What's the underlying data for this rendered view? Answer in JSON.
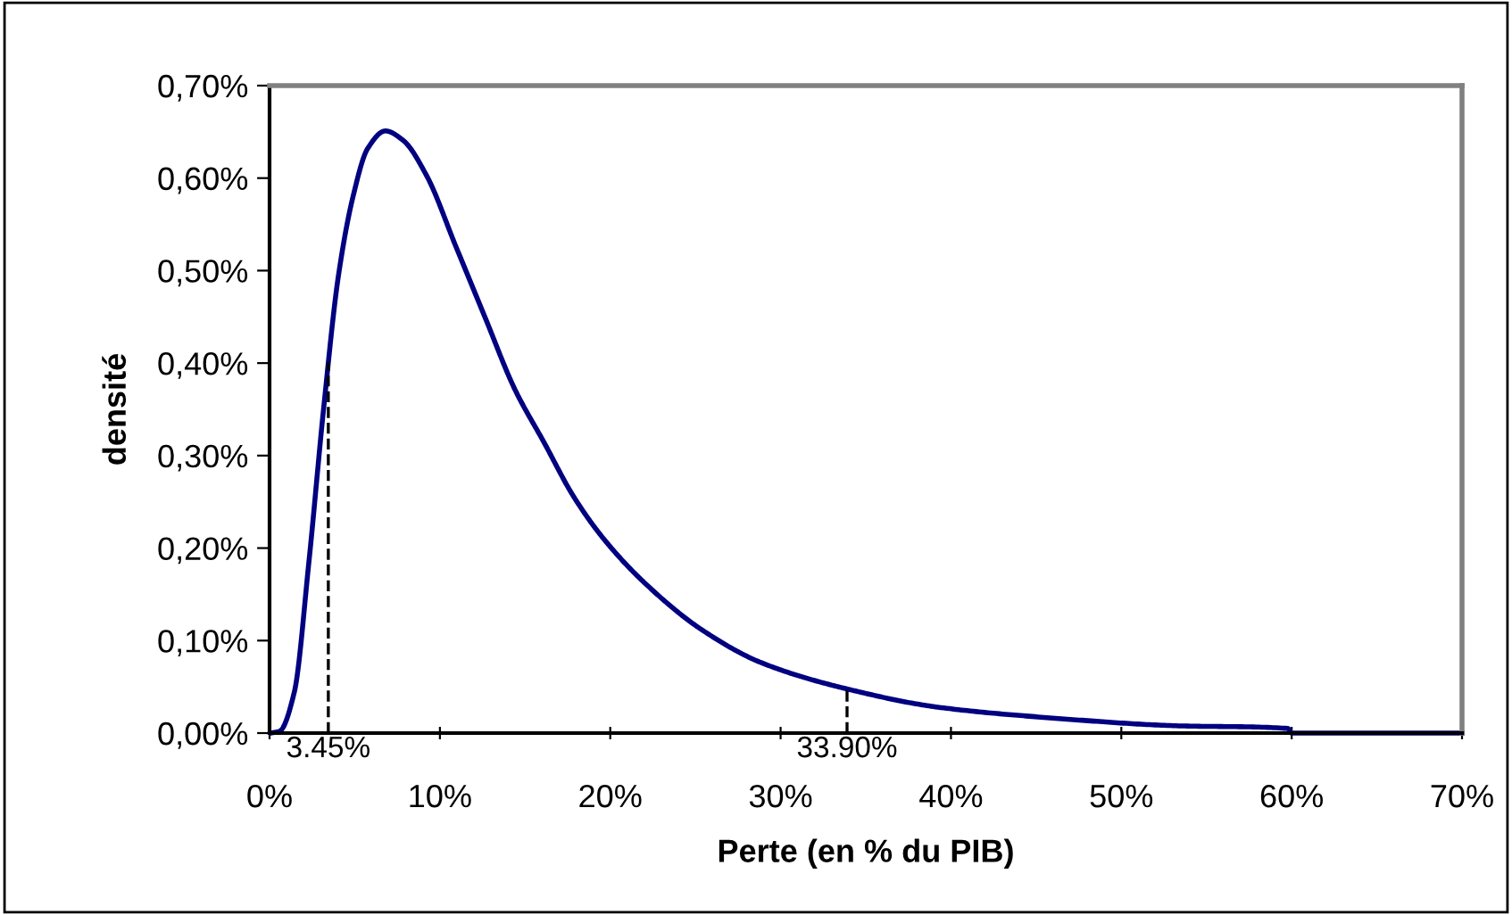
{
  "chart_data": {
    "type": "line",
    "xlabel": "Perte (en % du PIB)",
    "ylabel": "densité",
    "series": [
      {
        "color": "#000080",
        "x": [
          0.07,
          0.59,
          1.45,
          2.31,
          3.18,
          4.04,
          4.9,
          5.76,
          6.8,
          7.83,
          9.21,
          10.94,
          12.66,
          14.39,
          16.12,
          17.84,
          19.57,
          21.98,
          25.43,
          28.88,
          34.06,
          39.23,
          46.14,
          53.04,
          59.77,
          60.0,
          70.0
        ],
        "values": [
          0,
          0.002,
          0.044,
          0.185,
          0.352,
          0.494,
          0.58,
          0.632,
          0.651,
          0.641,
          0.603,
          0.526,
          0.449,
          0.372,
          0.314,
          0.256,
          0.211,
          0.163,
          0.111,
          0.076,
          0.047,
          0.028,
          0.016,
          0.008,
          0.005,
          0,
          0
        ]
      }
    ],
    "ref_lines": [
      {
        "axis": "x",
        "value": 3.45,
        "label": "3.45%",
        "color": "#000000",
        "line_style": "dashed"
      },
      {
        "axis": "x",
        "value": 33.9,
        "label": "33.90%",
        "color": "#000000",
        "line_style": "dashed"
      }
    ],
    "xlim": [
      0,
      70
    ],
    "xticks": [
      {
        "value": 0,
        "label": "0%"
      },
      {
        "value": 10,
        "label": "10%"
      },
      {
        "value": 20,
        "label": "20%"
      },
      {
        "value": 30,
        "label": "30%"
      },
      {
        "value": 40,
        "label": "40%"
      },
      {
        "value": 50,
        "label": "50%"
      },
      {
        "value": 60,
        "label": "60%"
      },
      {
        "value": 70,
        "label": "70%"
      }
    ],
    "ylim": [
      0,
      0.7
    ],
    "yticks": [
      {
        "value": 0,
        "label": "0,00%"
      },
      {
        "value": 0.1,
        "label": "0,10%"
      },
      {
        "value": 0.2,
        "label": "0,20%"
      },
      {
        "value": 0.3,
        "label": "0,30%"
      },
      {
        "value": 0.4,
        "label": "0,40%"
      },
      {
        "value": 0.5,
        "label": "0,50%"
      },
      {
        "value": 0.6,
        "label": "0,60%"
      },
      {
        "value": 0.7,
        "label": "0,70%"
      }
    ],
    "grid": false,
    "marker": "none",
    "line_style": "solid"
  }
}
